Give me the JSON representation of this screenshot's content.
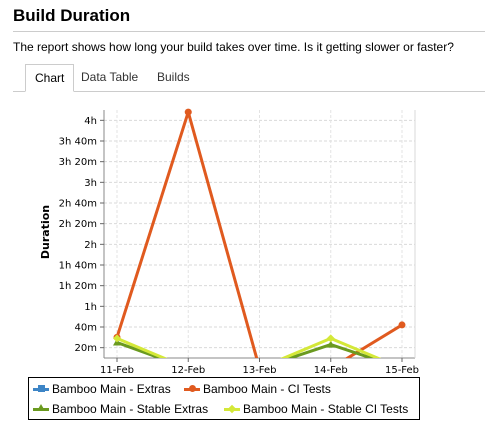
{
  "header": {
    "title": "Build Duration",
    "description": "The report shows how long your build takes over time. Is it getting slower or faster?"
  },
  "tabs": [
    {
      "label": "Chart",
      "active": true
    },
    {
      "label": "Data Table",
      "active": false
    },
    {
      "label": "Builds",
      "active": false
    }
  ],
  "chart_data": {
    "type": "line",
    "title": "",
    "xlabel": "",
    "ylabel": "Duration",
    "categories": [
      "11-Feb",
      "12-Feb",
      "13-Feb",
      "14-Feb",
      "15-Feb"
    ],
    "y_unit": "minutes",
    "ylim": [
      10,
      250
    ],
    "y_ticks": [
      {
        "value": 20,
        "label": "20m"
      },
      {
        "value": 40,
        "label": "40m"
      },
      {
        "value": 60,
        "label": "1h"
      },
      {
        "value": 80,
        "label": "1h 20m"
      },
      {
        "value": 100,
        "label": "1h 40m"
      },
      {
        "value": 120,
        "label": "2h"
      },
      {
        "value": 140,
        "label": "2h 20m"
      },
      {
        "value": 160,
        "label": "2h 40m"
      },
      {
        "value": 180,
        "label": "3h"
      },
      {
        "value": 200,
        "label": "3h 20m"
      },
      {
        "value": 220,
        "label": "3h 40m"
      },
      {
        "value": 240,
        "label": "4h"
      }
    ],
    "grid": true,
    "legend_position": "bottom",
    "series": [
      {
        "name": "Bamboo Main - Extras",
        "color": "#3d85c6",
        "marker": "square",
        "values": [
          null,
          null,
          null,
          null,
          null
        ]
      },
      {
        "name": "Bamboo Main - CI Tests",
        "color": "#e05a1f",
        "marker": "circle",
        "values": [
          30,
          248,
          0,
          0,
          42
        ]
      },
      {
        "name": "Bamboo Main - Stable Extras",
        "color": "#6a9a1f",
        "marker": "triangle",
        "values": [
          25,
          0,
          0,
          23,
          0
        ]
      },
      {
        "name": "Bamboo Main - Stable CI Tests",
        "color": "#d4e838",
        "marker": "diamond",
        "values": [
          29,
          0,
          0,
          29,
          0
        ]
      }
    ]
  }
}
